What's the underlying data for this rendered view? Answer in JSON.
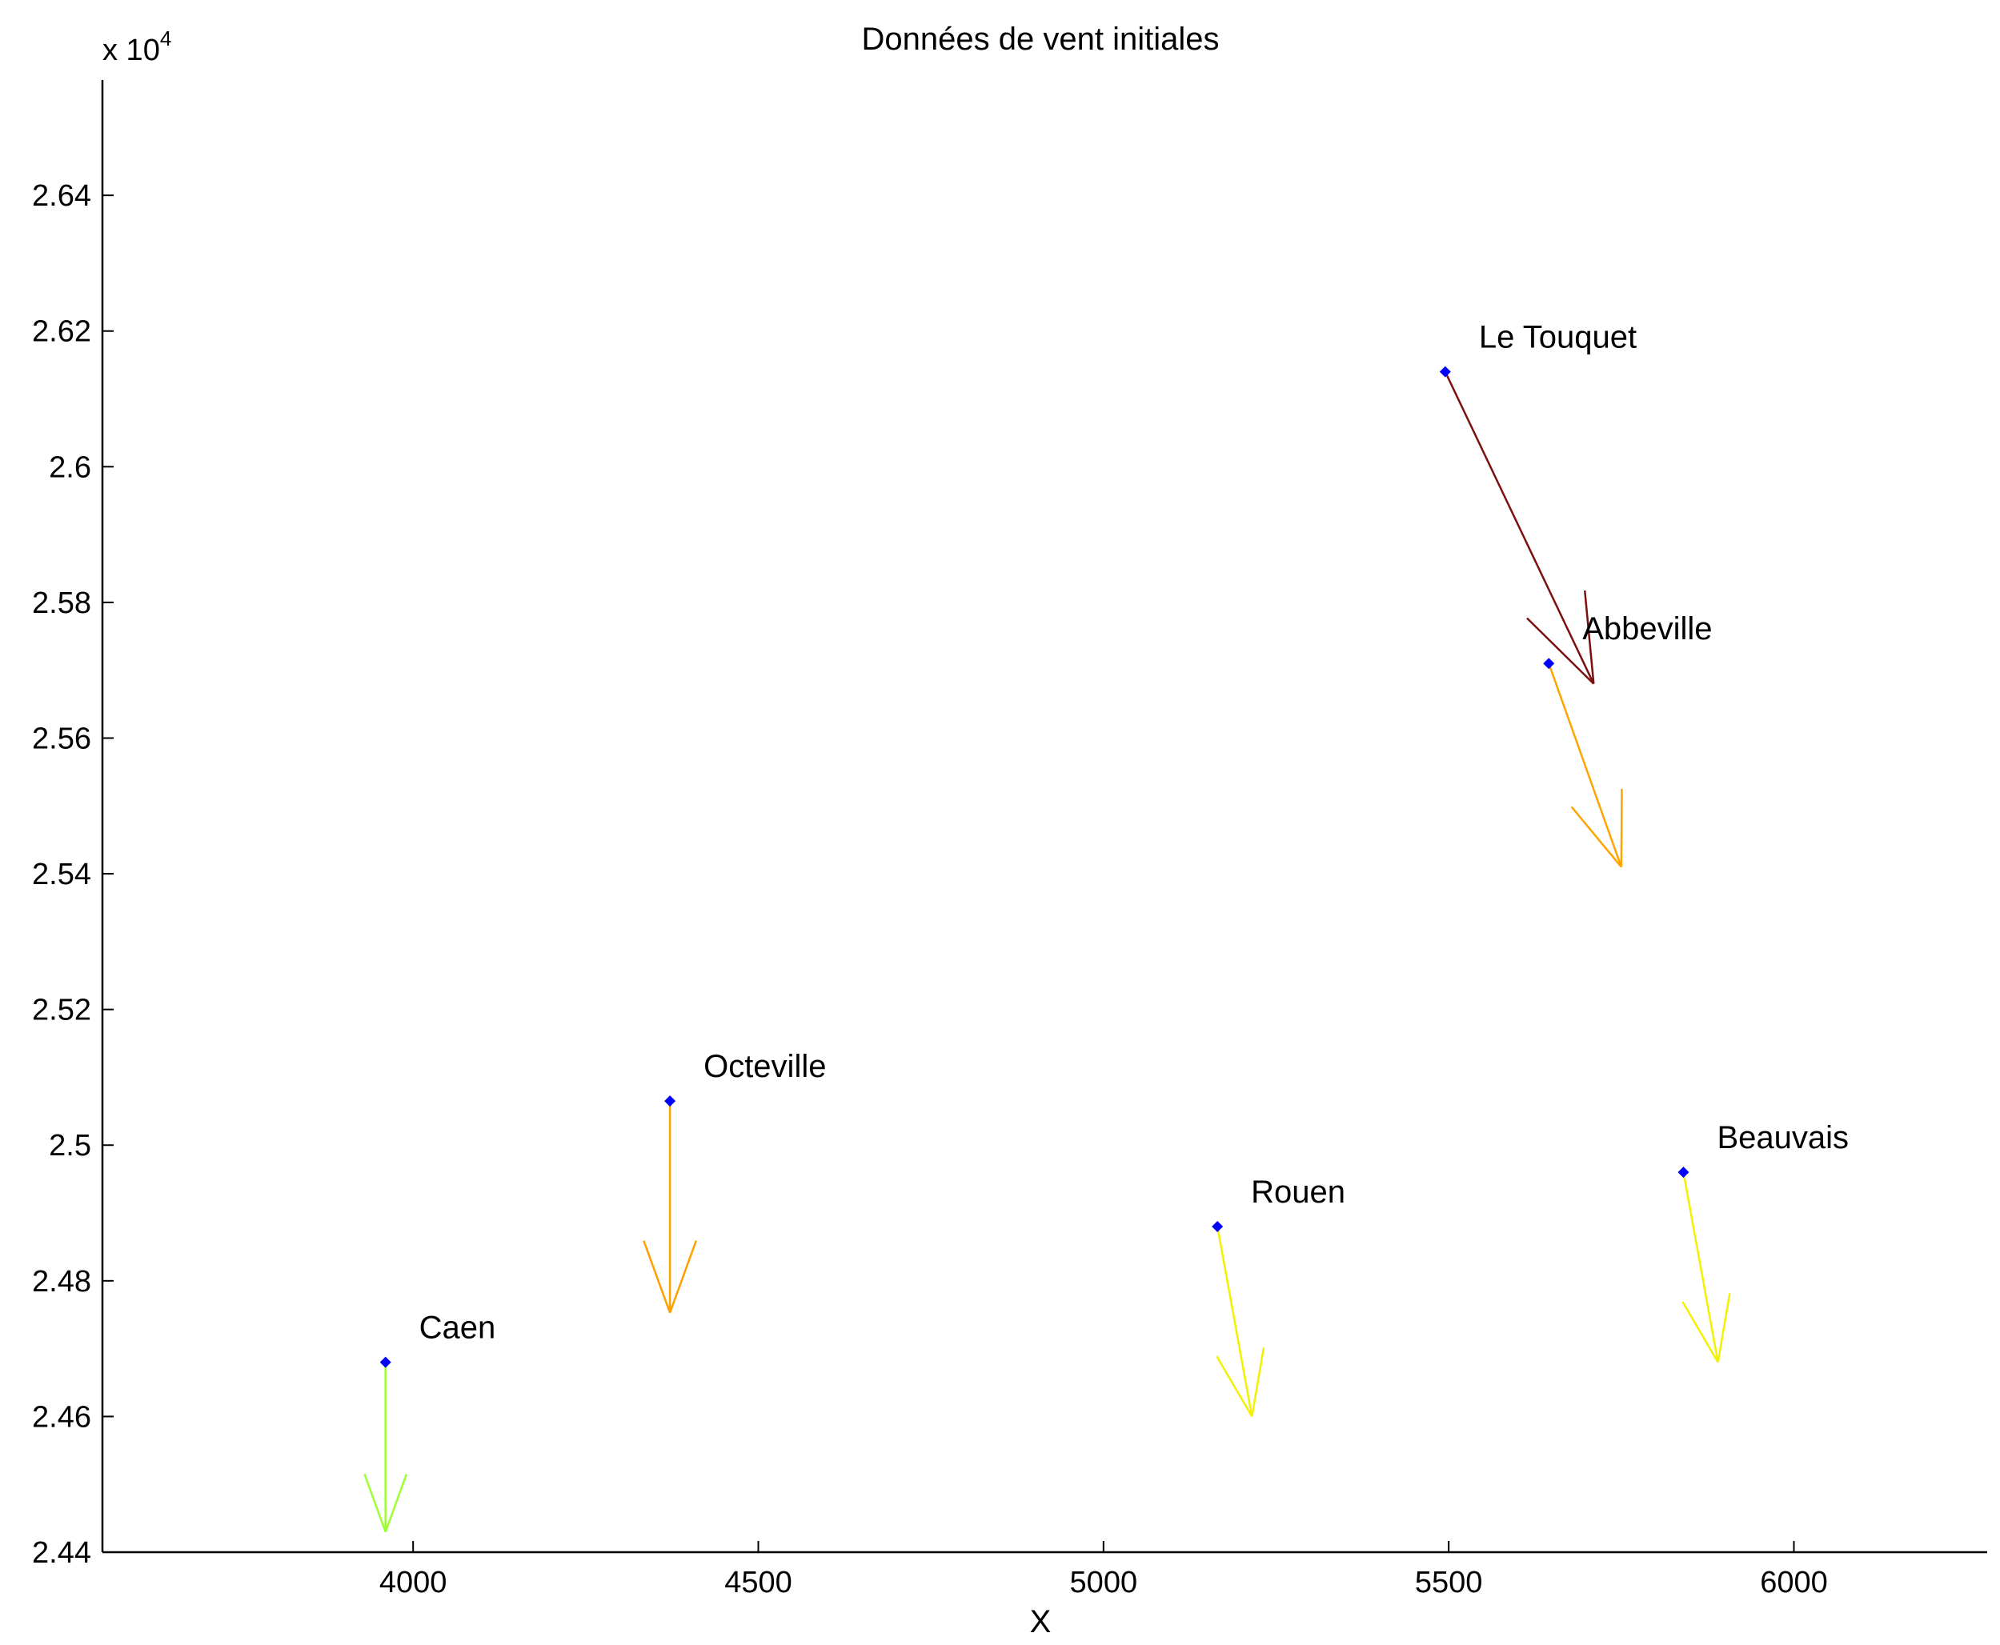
{
  "chart_data": {
    "type": "quiver",
    "title": "Données de vent initiales",
    "xlabel": "X",
    "ylabel": "",
    "y_multiplier": "x 10",
    "y_multiplier_exponent": "4",
    "xlim": [
      3550,
      6280
    ],
    "ylim": [
      24400,
      26570
    ],
    "xticks": [
      4000,
      4500,
      5000,
      5500,
      6000
    ],
    "yticks": [
      24400,
      24600,
      24800,
      25000,
      25200,
      25400,
      25600,
      25800,
      26000,
      26200,
      26400
    ],
    "ytick_labels": [
      "2.44",
      "2.46",
      "2.48",
      "2.5",
      "2.52",
      "2.54",
      "2.56",
      "2.58",
      "2.6",
      "2.62",
      "2.64"
    ],
    "grid": false,
    "marker_color": "#0000ff",
    "stations": [
      {
        "name": "Le Touquet",
        "x": 5495,
        "y": 26140,
        "u": 215,
        "v": -460,
        "color": "#7b1010"
      },
      {
        "name": "Abbeville",
        "x": 5645,
        "y": 25710,
        "u": 105,
        "v": -300,
        "color": "#ffa500"
      },
      {
        "name": "Octeville",
        "x": 4372,
        "y": 25065,
        "u": 0,
        "v": -312,
        "color": "#ff9f00"
      },
      {
        "name": "Rouen",
        "x": 5165,
        "y": 24880,
        "u": 50,
        "v": -280,
        "color": "#f2f200"
      },
      {
        "name": "Beauvais",
        "x": 5840,
        "y": 24960,
        "u": 50,
        "v": -280,
        "color": "#f2f200"
      },
      {
        "name": "Caen",
        "x": 3960,
        "y": 24680,
        "u": 0,
        "v": -250,
        "color": "#9cff33"
      }
    ]
  }
}
